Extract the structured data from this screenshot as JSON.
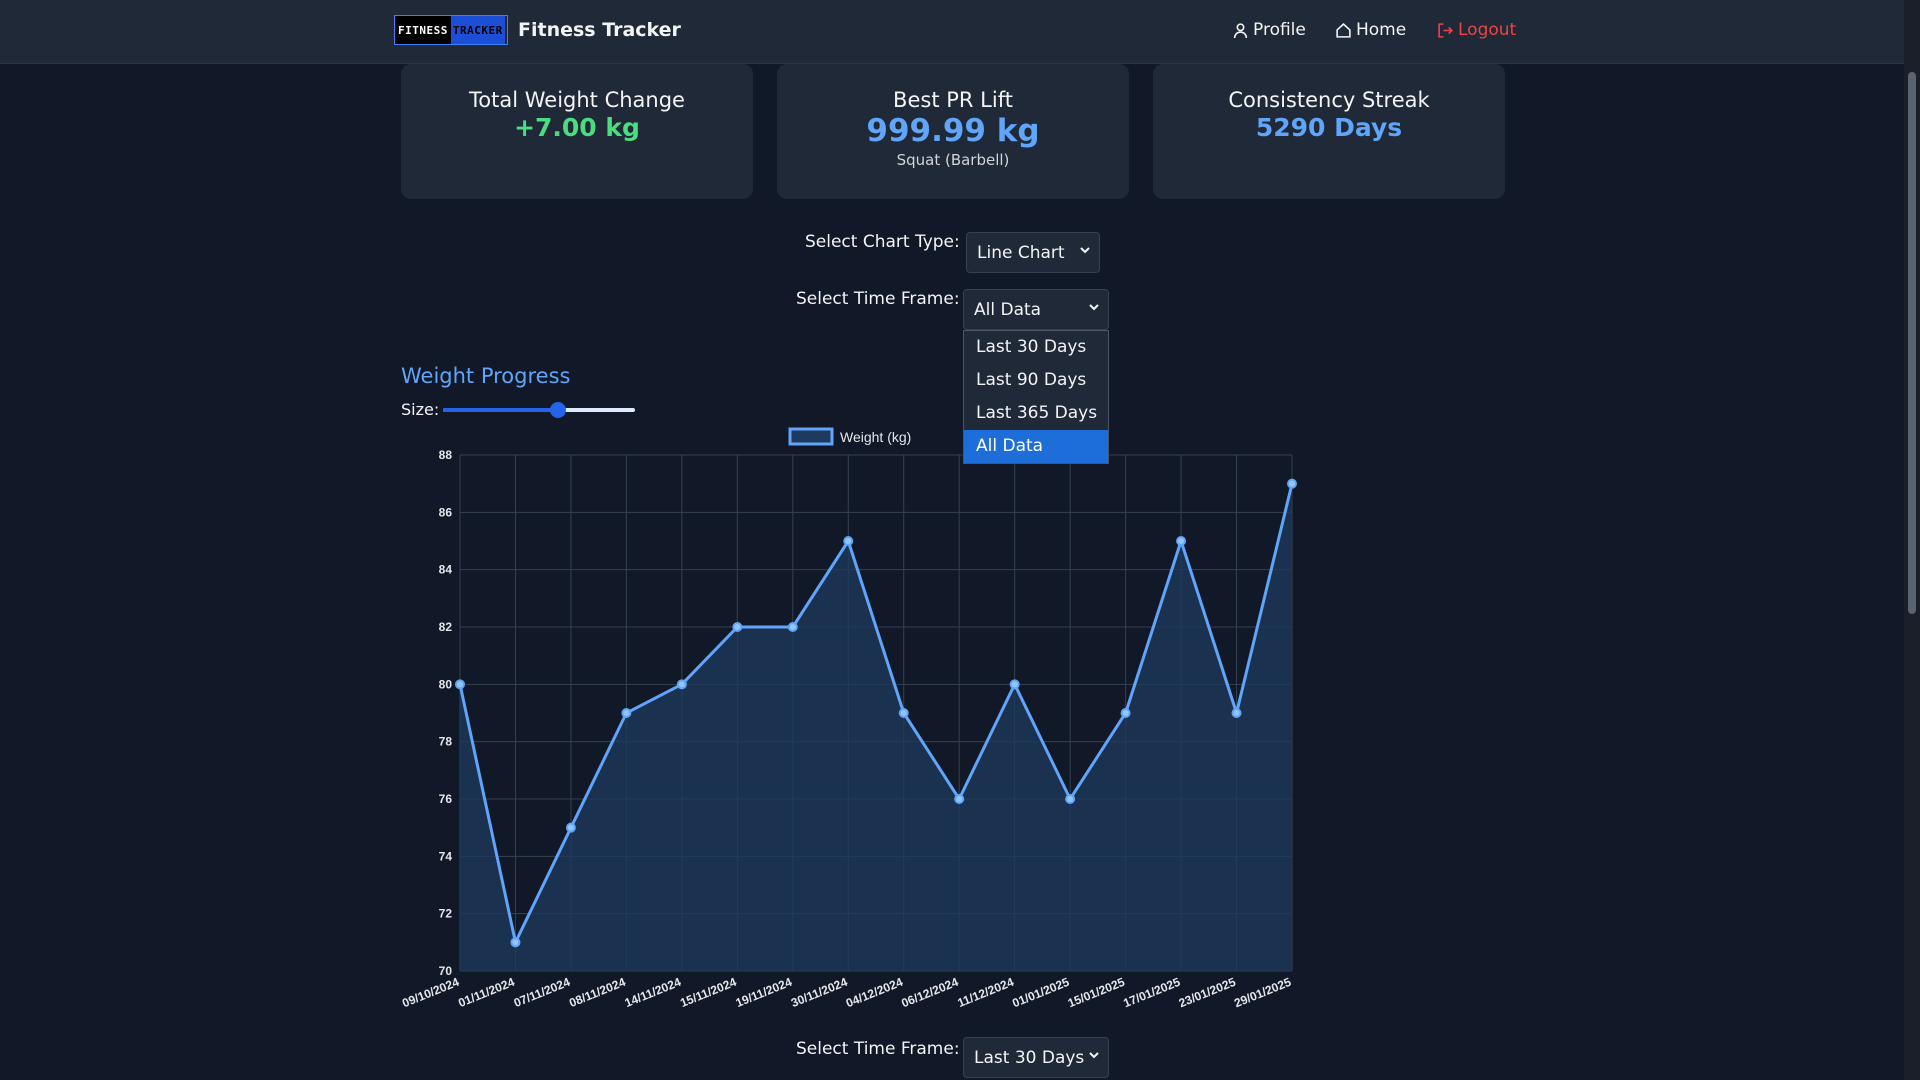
{
  "navbar": {
    "logo_part1": "FITNESS",
    "logo_part2": "TRACKER",
    "brand": "Fitness Tracker",
    "links": {
      "profile": "Profile",
      "home": "Home",
      "logout": "Logout"
    }
  },
  "cards": {
    "weight_change": {
      "title": "Total Weight Change",
      "value": "+7.00 kg"
    },
    "best_pr": {
      "title": "Best PR Lift",
      "value": "999.99 kg",
      "sub": "Squat (Barbell)"
    },
    "streak": {
      "title": "Consistency Streak",
      "value": "5290 Days"
    }
  },
  "controls": {
    "chart_type_label": "Select Chart Type:",
    "chart_type_value": "Line Chart",
    "time_frame_label": "Select Time Frame:",
    "time_frame_value": "All Data",
    "time_frame_options": [
      "Last 30 Days",
      "Last 90 Days",
      "Last 365 Days",
      "All Data"
    ],
    "time_frame_selected_index": 3,
    "bottom_time_frame_label": "Select Time Frame:",
    "bottom_time_frame_value": "Last 30 Days"
  },
  "section": {
    "title": "Weight Progress",
    "size_label": "Size:",
    "size_value_fraction": 0.6
  },
  "colors": {
    "accent": "#60a5fa",
    "positive": "#4ade80",
    "logout": "#ef4444",
    "selected_option": "#1d6ed8"
  },
  "chart_data": {
    "type": "area",
    "series": [
      {
        "name": "Weight (kg)",
        "values": [
          80,
          71,
          75,
          79,
          80,
          82,
          82,
          85,
          79,
          76,
          80,
          76,
          79,
          85,
          79,
          87
        ]
      }
    ],
    "categories": [
      "09/10/2024",
      "01/11/2024",
      "07/11/2024",
      "08/11/2024",
      "14/11/2024",
      "15/11/2024",
      "19/11/2024",
      "30/11/2024",
      "04/12/2024",
      "06/12/2024",
      "11/12/2024",
      "01/01/2025",
      "15/01/2025",
      "17/01/2025",
      "23/01/2025",
      "29/01/2025"
    ],
    "ylim": [
      70,
      88
    ],
    "yticks": [
      70,
      72,
      74,
      76,
      78,
      80,
      82,
      84,
      86,
      88
    ],
    "grid": true,
    "legend": "top-center",
    "line_color": "#60a5fa",
    "fill_color": "#1e3a5f"
  }
}
